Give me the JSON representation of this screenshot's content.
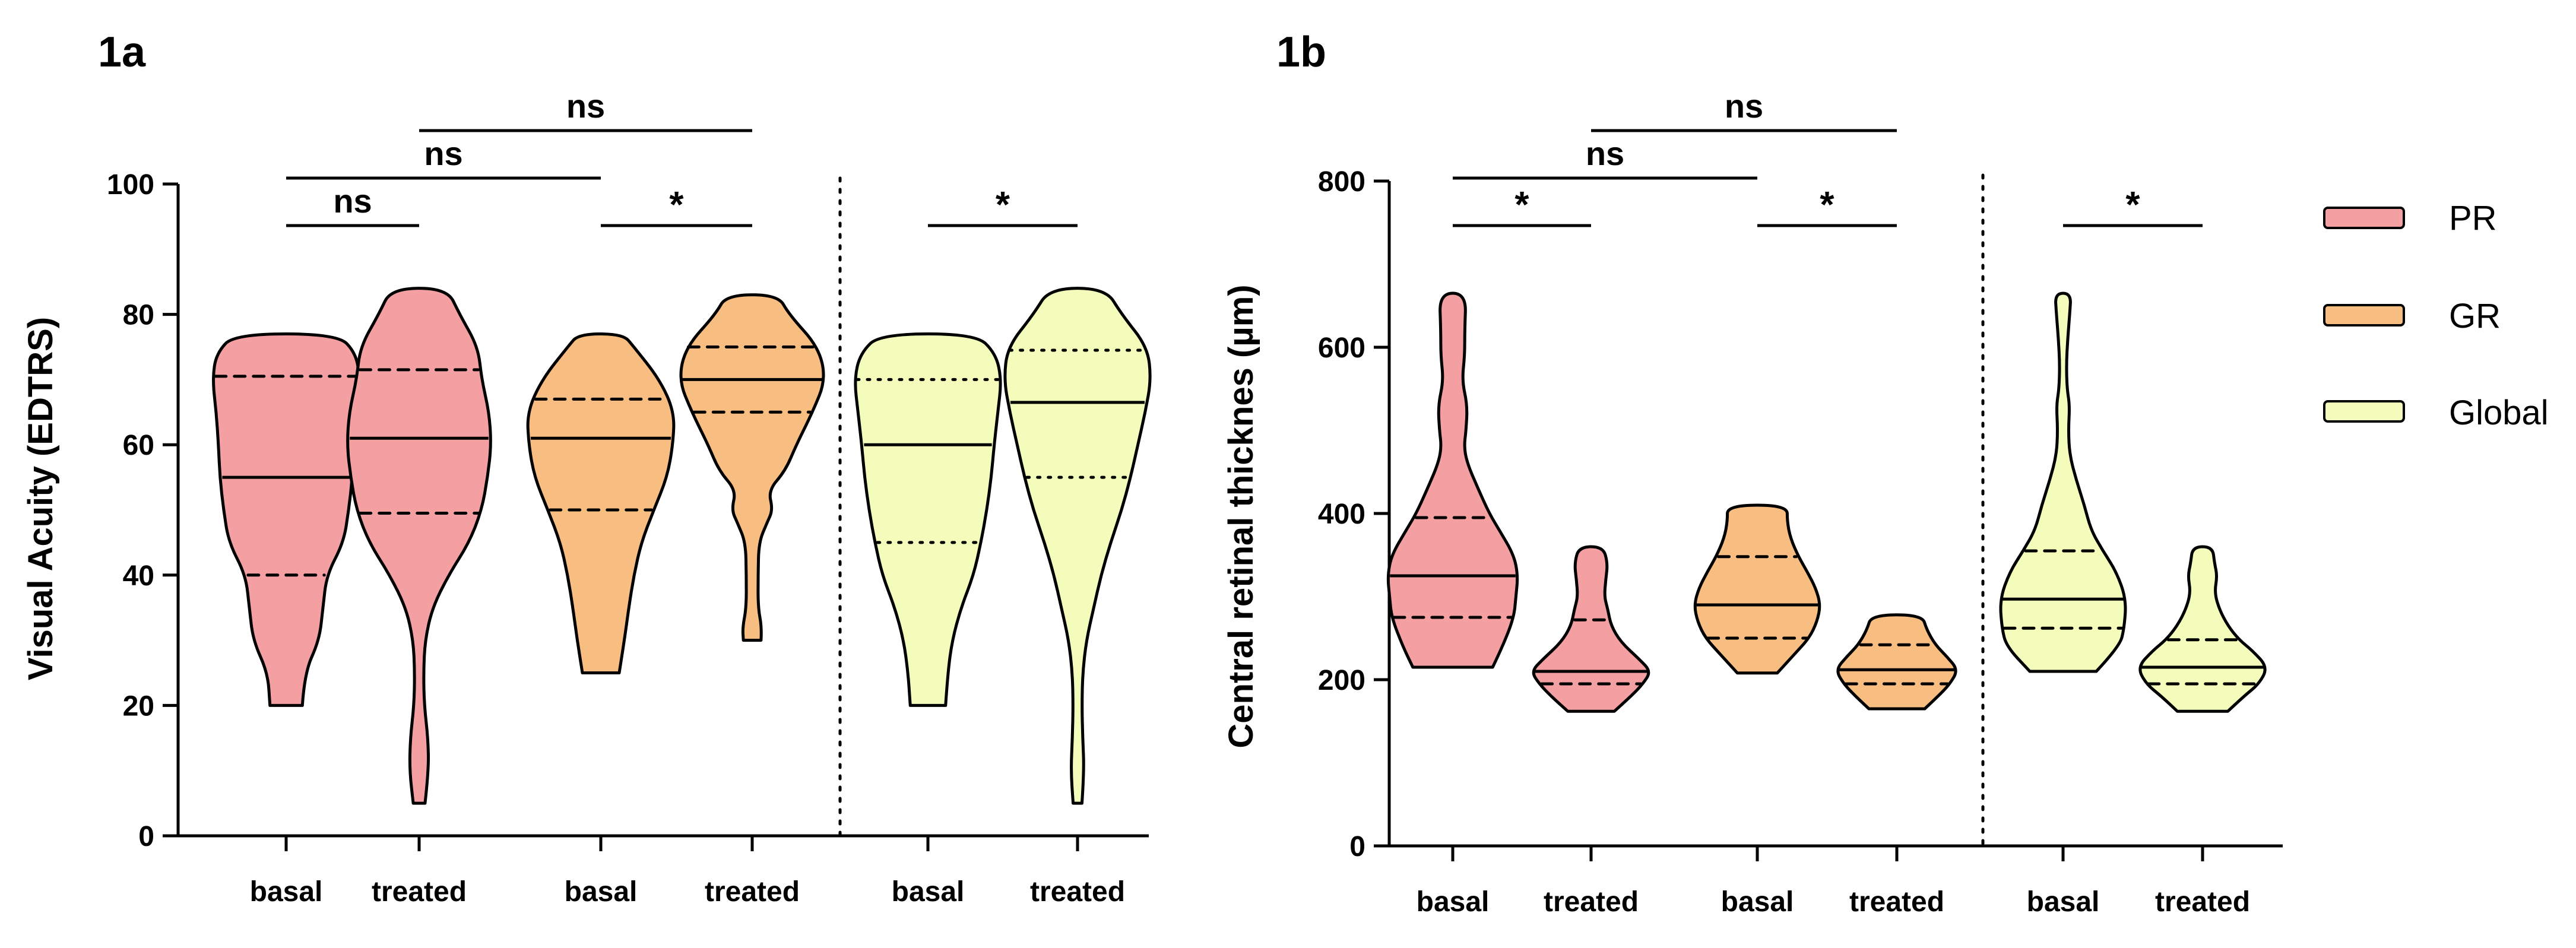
{
  "colors": {
    "PR": "#f4a0a3",
    "GR": "#f8bd80",
    "Global": "#f3fcbb",
    "stroke": "#000000"
  },
  "legend": [
    {
      "key": "PR",
      "label": "PR"
    },
    {
      "key": "GR",
      "label": "GR"
    },
    {
      "key": "Global",
      "label": "Global"
    }
  ],
  "chart_data": [
    {
      "panel": "1a",
      "type": "violin",
      "title": "1a",
      "ylabel": "Visual Acuity (EDTRS)",
      "ylim": [
        0,
        100
      ],
      "yticks": [
        0,
        20,
        40,
        60,
        80,
        100
      ],
      "groups": [
        {
          "name": "basal",
          "series": "PR",
          "min": 20,
          "max": 77,
          "q1": 40,
          "median": 55,
          "q3": 70.5,
          "density": [
            [
              20,
              0.22
            ],
            [
              25,
              0.25
            ],
            [
              30,
              0.45
            ],
            [
              35,
              0.5
            ],
            [
              40,
              0.55
            ],
            [
              45,
              0.78
            ],
            [
              50,
              0.85
            ],
            [
              55,
              0.9
            ],
            [
              60,
              0.92
            ],
            [
              65,
              0.95
            ],
            [
              70,
              1.0
            ],
            [
              74,
              0.95
            ],
            [
              77,
              0.7
            ]
          ]
        },
        {
          "name": "treated",
          "series": "PR",
          "min": 5,
          "max": 84,
          "q1": 49.5,
          "median": 61,
          "q3": 71.5,
          "density": [
            [
              5,
              0.08
            ],
            [
              10,
              0.13
            ],
            [
              15,
              0.12
            ],
            [
              20,
              0.07
            ],
            [
              25,
              0.06
            ],
            [
              30,
              0.08
            ],
            [
              35,
              0.18
            ],
            [
              40,
              0.4
            ],
            [
              45,
              0.68
            ],
            [
              50,
              0.85
            ],
            [
              55,
              0.93
            ],
            [
              60,
              0.98
            ],
            [
              65,
              0.95
            ],
            [
              70,
              0.85
            ],
            [
              75,
              0.8
            ],
            [
              80,
              0.55
            ],
            [
              84,
              0.38
            ]
          ]
        },
        {
          "name": "basal",
          "series": "GR",
          "min": 25,
          "max": 77,
          "q1": 50,
          "median": 61,
          "q3": 67,
          "density": [
            [
              25,
              0.25
            ],
            [
              30,
              0.32
            ],
            [
              35,
              0.38
            ],
            [
              40,
              0.45
            ],
            [
              45,
              0.55
            ],
            [
              50,
              0.72
            ],
            [
              55,
              0.9
            ],
            [
              60,
              0.98
            ],
            [
              65,
              1.0
            ],
            [
              70,
              0.8
            ],
            [
              75,
              0.45
            ],
            [
              77,
              0.3
            ]
          ]
        },
        {
          "name": "treated",
          "series": "GR",
          "min": 30,
          "max": 83,
          "q1": 65,
          "median": 70,
          "q3": 75,
          "density": [
            [
              30,
              0.12
            ],
            [
              32,
              0.13
            ],
            [
              35,
              0.08
            ],
            [
              40,
              0.08
            ],
            [
              45,
              0.09
            ],
            [
              48,
              0.2
            ],
            [
              50,
              0.28
            ],
            [
              53,
              0.22
            ],
            [
              56,
              0.45
            ],
            [
              60,
              0.6
            ],
            [
              65,
              0.82
            ],
            [
              70,
              1.0
            ],
            [
              75,
              0.9
            ],
            [
              80,
              0.5
            ],
            [
              83,
              0.35
            ]
          ]
        }
      ],
      "groups_global": [
        {
          "name": "basal",
          "series": "Global",
          "min": 20,
          "max": 77,
          "q1": 45,
          "median": 60,
          "q3": 70,
          "density": [
            [
              20,
              0.24
            ],
            [
              25,
              0.27
            ],
            [
              30,
              0.33
            ],
            [
              35,
              0.45
            ],
            [
              40,
              0.62
            ],
            [
              45,
              0.72
            ],
            [
              50,
              0.8
            ],
            [
              55,
              0.86
            ],
            [
              60,
              0.9
            ],
            [
              65,
              0.95
            ],
            [
              70,
              1.0
            ],
            [
              74,
              0.92
            ],
            [
              77,
              0.65
            ]
          ]
        }
      ],
      "groups_global_treated": [
        {
          "name": "treated",
          "series": "Global",
          "min": 5,
          "max": 84,
          "q1": 55,
          "median": 66.5,
          "q3": 74.5,
          "density": [
            [
              5,
              0.06
            ],
            [
              10,
              0.09
            ],
            [
              15,
              0.07
            ],
            [
              20,
              0.06
            ],
            [
              25,
              0.07
            ],
            [
              30,
              0.12
            ],
            [
              35,
              0.22
            ],
            [
              40,
              0.32
            ],
            [
              45,
              0.45
            ],
            [
              50,
              0.6
            ],
            [
              55,
              0.72
            ],
            [
              60,
              0.82
            ],
            [
              65,
              0.92
            ],
            [
              70,
              1.0
            ],
            [
              75,
              0.95
            ],
            [
              80,
              0.6
            ],
            [
              84,
              0.38
            ]
          ]
        }
      ],
      "comparisons": [
        {
          "from": 0,
          "to": 1,
          "label": "ns",
          "level": 1
        },
        {
          "from": 2,
          "to": 3,
          "label": "*",
          "level": 1
        },
        {
          "from": 0,
          "to": 2,
          "label": "ns",
          "level": 2
        },
        {
          "from": 1,
          "to": 3,
          "label": "ns",
          "level": 3
        },
        {
          "from": 4,
          "to": 5,
          "label": "*",
          "level": 1
        }
      ],
      "xlabels": [
        "basal",
        "treated",
        "basal",
        "treated",
        "basal",
        "treated"
      ]
    },
    {
      "panel": "1b",
      "type": "violin",
      "title": "1b",
      "ylabel": "Central retinal thicknes (µm)",
      "ylim": [
        0,
        800
      ],
      "yticks": [
        0,
        200,
        400,
        600,
        800
      ],
      "groups": [
        {
          "name": "basal",
          "series": "PR",
          "min": 215,
          "max": 665,
          "q1": 275,
          "median": 325,
          "q3": 395,
          "density": [
            [
              215,
              0.6
            ],
            [
              240,
              0.75
            ],
            [
              275,
              0.92
            ],
            [
              300,
              0.95
            ],
            [
              325,
              0.98
            ],
            [
              350,
              0.92
            ],
            [
              380,
              0.7
            ],
            [
              400,
              0.55
            ],
            [
              430,
              0.38
            ],
            [
              460,
              0.22
            ],
            [
              480,
              0.17
            ],
            [
              500,
              0.2
            ],
            [
              530,
              0.22
            ],
            [
              560,
              0.14
            ],
            [
              590,
              0.18
            ],
            [
              620,
              0.18
            ],
            [
              665,
              0.2
            ]
          ]
        },
        {
          "name": "treated",
          "series": "PR",
          "min": 162,
          "max": 360,
          "q1": 195,
          "median": 210,
          "q3": 272,
          "density": [
            [
              162,
              0.35
            ],
            [
              180,
              0.6
            ],
            [
              195,
              0.78
            ],
            [
              210,
              0.9
            ],
            [
              225,
              0.72
            ],
            [
              245,
              0.45
            ],
            [
              265,
              0.3
            ],
            [
              285,
              0.25
            ],
            [
              300,
              0.2
            ],
            [
              320,
              0.22
            ],
            [
              340,
              0.25
            ],
            [
              360,
              0.18
            ]
          ]
        },
        {
          "name": "basal",
          "series": "GR",
          "min": 208,
          "max": 410,
          "q1": 250,
          "median": 290,
          "q3": 348,
          "density": [
            [
              208,
              0.3
            ],
            [
              230,
              0.55
            ],
            [
              250,
              0.78
            ],
            [
              270,
              0.9
            ],
            [
              290,
              0.95
            ],
            [
              310,
              0.88
            ],
            [
              330,
              0.75
            ],
            [
              348,
              0.62
            ],
            [
              370,
              0.5
            ],
            [
              390,
              0.45
            ],
            [
              410,
              0.45
            ]
          ]
        },
        {
          "name": "treated",
          "series": "GR",
          "min": 165,
          "max": 278,
          "q1": 195,
          "median": 212,
          "q3": 242,
          "density": [
            [
              165,
              0.42
            ],
            [
              180,
              0.62
            ],
            [
              195,
              0.8
            ],
            [
              212,
              0.92
            ],
            [
              228,
              0.75
            ],
            [
              242,
              0.58
            ],
            [
              260,
              0.45
            ],
            [
              278,
              0.38
            ]
          ]
        }
      ],
      "groups_global": [
        {
          "name": "basal",
          "series": "Global",
          "min": 210,
          "max": 665,
          "q1": 262,
          "median": 297,
          "q3": 355,
          "density": [
            [
              210,
              0.5
            ],
            [
              240,
              0.85
            ],
            [
              262,
              0.92
            ],
            [
              297,
              0.95
            ],
            [
              330,
              0.8
            ],
            [
              355,
              0.6
            ],
            [
              380,
              0.42
            ],
            [
              410,
              0.32
            ],
            [
              440,
              0.2
            ],
            [
              470,
              0.1
            ],
            [
              500,
              0.08
            ],
            [
              530,
              0.1
            ],
            [
              550,
              0.06
            ],
            [
              580,
              0.05
            ],
            [
              610,
              0.07
            ],
            [
              640,
              0.1
            ],
            [
              665,
              0.12
            ]
          ]
        }
      ],
      "groups_global_treated": [
        {
          "name": "treated",
          "series": "Global",
          "min": 162,
          "max": 360,
          "q1": 195,
          "median": 215,
          "q3": 248,
          "density": [
            [
              162,
              0.38
            ],
            [
              180,
              0.62
            ],
            [
              195,
              0.85
            ],
            [
              215,
              0.98
            ],
            [
              235,
              0.75
            ],
            [
              248,
              0.55
            ],
            [
              265,
              0.38
            ],
            [
              285,
              0.25
            ],
            [
              305,
              0.18
            ],
            [
              325,
              0.22
            ],
            [
              340,
              0.18
            ],
            [
              360,
              0.15
            ]
          ]
        }
      ],
      "comparisons": [
        {
          "from": 0,
          "to": 1,
          "label": "*",
          "level": 1
        },
        {
          "from": 2,
          "to": 3,
          "label": "*",
          "level": 1
        },
        {
          "from": 0,
          "to": 2,
          "label": "ns",
          "level": 2
        },
        {
          "from": 1,
          "to": 3,
          "label": "ns",
          "level": 3
        },
        {
          "from": 4,
          "to": 5,
          "label": "*",
          "level": 1
        }
      ],
      "xlabels": [
        "basal",
        "treated",
        "basal",
        "treated",
        "basal",
        "treated"
      ]
    }
  ]
}
